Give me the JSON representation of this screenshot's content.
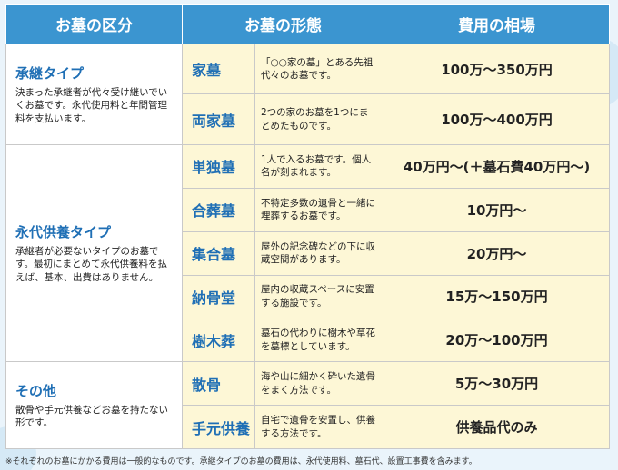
{
  "headers": {
    "category": "お墓の区分",
    "form": "お墓の形態",
    "cost": "費用の相場"
  },
  "categories": [
    {
      "title": "承継タイプ",
      "desc": "決まった承継者が代々受け継いでいくお墓です。永代使用料と年間管理料を支払います。"
    },
    {
      "title": "永代供養タイプ",
      "desc": "承継者が必要ないタイプのお墓です。最初にまとめて永代供養料を払えば、基本、出費はありません。"
    },
    {
      "title": "その他",
      "desc": "散骨や手元供養などお墓を持たない形です。"
    }
  ],
  "rows": [
    {
      "name": "家墓",
      "desc": "「○○家の墓」とある先祖代々のお墓です。",
      "cost": "100万～350万円"
    },
    {
      "name": "両家墓",
      "desc": "2つの家のお墓を1つにまとめたものです。",
      "cost": "100万～400万円"
    },
    {
      "name": "単独墓",
      "desc": "1人で入るお墓です。個人名が刻まれます。",
      "cost": "40万円～(＋墓石費40万円～)"
    },
    {
      "name": "合葬墓",
      "desc": "不特定多数の遺骨と一緒に埋葬するお墓です。",
      "cost": "10万円～"
    },
    {
      "name": "集合墓",
      "desc": "屋外の記念碑などの下に収蔵空間があります。",
      "cost": "20万円～"
    },
    {
      "name": "納骨堂",
      "desc": "屋内の収蔵スペースに安置する施設です。",
      "cost": "15万～150万円"
    },
    {
      "name": "樹木葬",
      "desc": "墓石の代わりに樹木や草花を墓標としています。",
      "cost": "20万～100万円"
    },
    {
      "name": "散骨",
      "desc": "海や山に細かく砕いた遺骨をまく方法です。",
      "cost": "5万～30万円"
    },
    {
      "name": "手元供養",
      "desc": "自宅で遺骨を安置し、供養する方法です。",
      "cost": "供養品代のみ"
    }
  ],
  "footnote": "※それぞれのお墓にかかる費用は一般的なものです。承継タイプのお墓の費用は、永代使用料、墓石代、設置工事費を含みます。",
  "colors": {
    "header_bg": "#3b95d0",
    "accent_text": "#1f6fb5",
    "row_bg": "#fdf7d6",
    "page_bg": "#eaf4fb"
  }
}
